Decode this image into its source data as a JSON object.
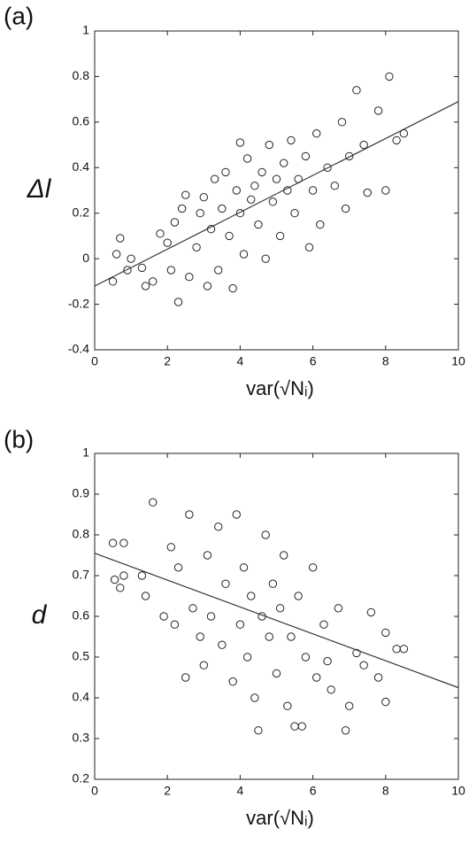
{
  "chart_data": [
    {
      "type": "scatter",
      "panel_label": "(a)",
      "y_label": "Δl",
      "x_label": "var(√Nᵢ)",
      "xlim": [
        0,
        10
      ],
      "xticks": [
        0,
        2,
        4,
        6,
        8,
        10
      ],
      "ylim": [
        -0.4,
        1
      ],
      "yticks": [
        -0.4,
        -0.2,
        0,
        0.2,
        0.4,
        0.6,
        0.8,
        1
      ],
      "grid": false,
      "series": [
        {
          "mode": "markers",
          "color": "#222222",
          "x": [
            0.5,
            0.6,
            0.7,
            0.9,
            1.0,
            1.3,
            1.4,
            1.6,
            1.8,
            2.0,
            2.1,
            2.2,
            2.3,
            2.4,
            2.5,
            2.6,
            2.8,
            2.9,
            3.0,
            3.1,
            3.2,
            3.3,
            3.4,
            3.5,
            3.6,
            3.7,
            3.8,
            3.9,
            4.0,
            4.0,
            4.1,
            4.2,
            4.3,
            4.4,
            4.5,
            4.6,
            4.7,
            4.8,
            4.9,
            5.0,
            5.1,
            5.2,
            5.3,
            5.4,
            5.5,
            5.6,
            5.8,
            6.0,
            6.1,
            6.2,
            6.4,
            6.6,
            6.8,
            7.0,
            7.2,
            7.4,
            7.5,
            7.8,
            8.0,
            8.1,
            8.3,
            8.5,
            6.9,
            5.9
          ],
          "values": [
            -0.1,
            0.02,
            0.09,
            -0.05,
            0,
            -0.04,
            -0.12,
            -0.1,
            0.11,
            0.07,
            -0.05,
            0.16,
            -0.19,
            0.22,
            0.28,
            -0.08,
            0.05,
            0.2,
            0.27,
            -0.12,
            0.13,
            0.35,
            -0.05,
            0.22,
            0.38,
            0.1,
            -0.13,
            0.3,
            0.51,
            0.2,
            0.02,
            0.44,
            0.26,
            0.32,
            0.15,
            0.38,
            0,
            0.5,
            0.25,
            0.35,
            0.1,
            0.42,
            0.3,
            0.52,
            0.2,
            0.35,
            0.45,
            0.3,
            0.55,
            0.15,
            0.4,
            0.32,
            0.6,
            0.45,
            0.74,
            0.5,
            0.29,
            0.65,
            0.3,
            0.8,
            0.52,
            0.55,
            0.22,
            0.05
          ]
        },
        {
          "mode": "line",
          "color": "#333333",
          "x": [
            0,
            10
          ],
          "values": [
            -0.12,
            0.69
          ]
        }
      ]
    },
    {
      "type": "scatter",
      "panel_label": "(b)",
      "y_label": "d",
      "x_label": "var(√Nᵢ)",
      "xlim": [
        0,
        10
      ],
      "xticks": [
        0,
        2,
        4,
        6,
        8,
        10
      ],
      "ylim": [
        0.2,
        1
      ],
      "yticks": [
        0.2,
        0.3,
        0.4,
        0.5,
        0.6,
        0.7,
        0.8,
        0.9,
        1
      ],
      "grid": false,
      "series": [
        {
          "mode": "markers",
          "color": "#222222",
          "x": [
            0.5,
            0.55,
            0.7,
            0.8,
            0.8,
            1.3,
            1.4,
            1.6,
            1.9,
            2.1,
            2.2,
            2.3,
            2.5,
            2.6,
            2.7,
            2.9,
            3.0,
            3.1,
            3.2,
            3.4,
            3.5,
            3.6,
            3.8,
            3.9,
            4.0,
            4.1,
            4.2,
            4.3,
            4.4,
            4.5,
            4.6,
            4.7,
            4.8,
            4.9,
            5.0,
            5.1,
            5.2,
            5.3,
            5.4,
            5.5,
            5.6,
            5.8,
            6.0,
            6.1,
            6.3,
            6.5,
            6.7,
            6.9,
            7.0,
            7.2,
            7.4,
            7.6,
            7.8,
            8.0,
            8.0,
            8.3,
            8.5,
            5.7,
            6.4
          ],
          "values": [
            0.78,
            0.69,
            0.67,
            0.78,
            0.7,
            0.7,
            0.65,
            0.88,
            0.6,
            0.77,
            0.58,
            0.72,
            0.45,
            0.85,
            0.62,
            0.55,
            0.48,
            0.75,
            0.6,
            0.82,
            0.53,
            0.68,
            0.44,
            0.85,
            0.58,
            0.72,
            0.5,
            0.65,
            0.4,
            0.32,
            0.6,
            0.8,
            0.55,
            0.68,
            0.46,
            0.62,
            0.75,
            0.38,
            0.55,
            0.33,
            0.65,
            0.5,
            0.72,
            0.45,
            0.58,
            0.42,
            0.62,
            0.32,
            0.38,
            0.51,
            0.48,
            0.61,
            0.45,
            0.39,
            0.56,
            0.52,
            0.52,
            0.33,
            0.49
          ]
        },
        {
          "mode": "line",
          "color": "#333333",
          "x": [
            0,
            10
          ],
          "values": [
            0.755,
            0.425
          ]
        }
      ]
    }
  ]
}
